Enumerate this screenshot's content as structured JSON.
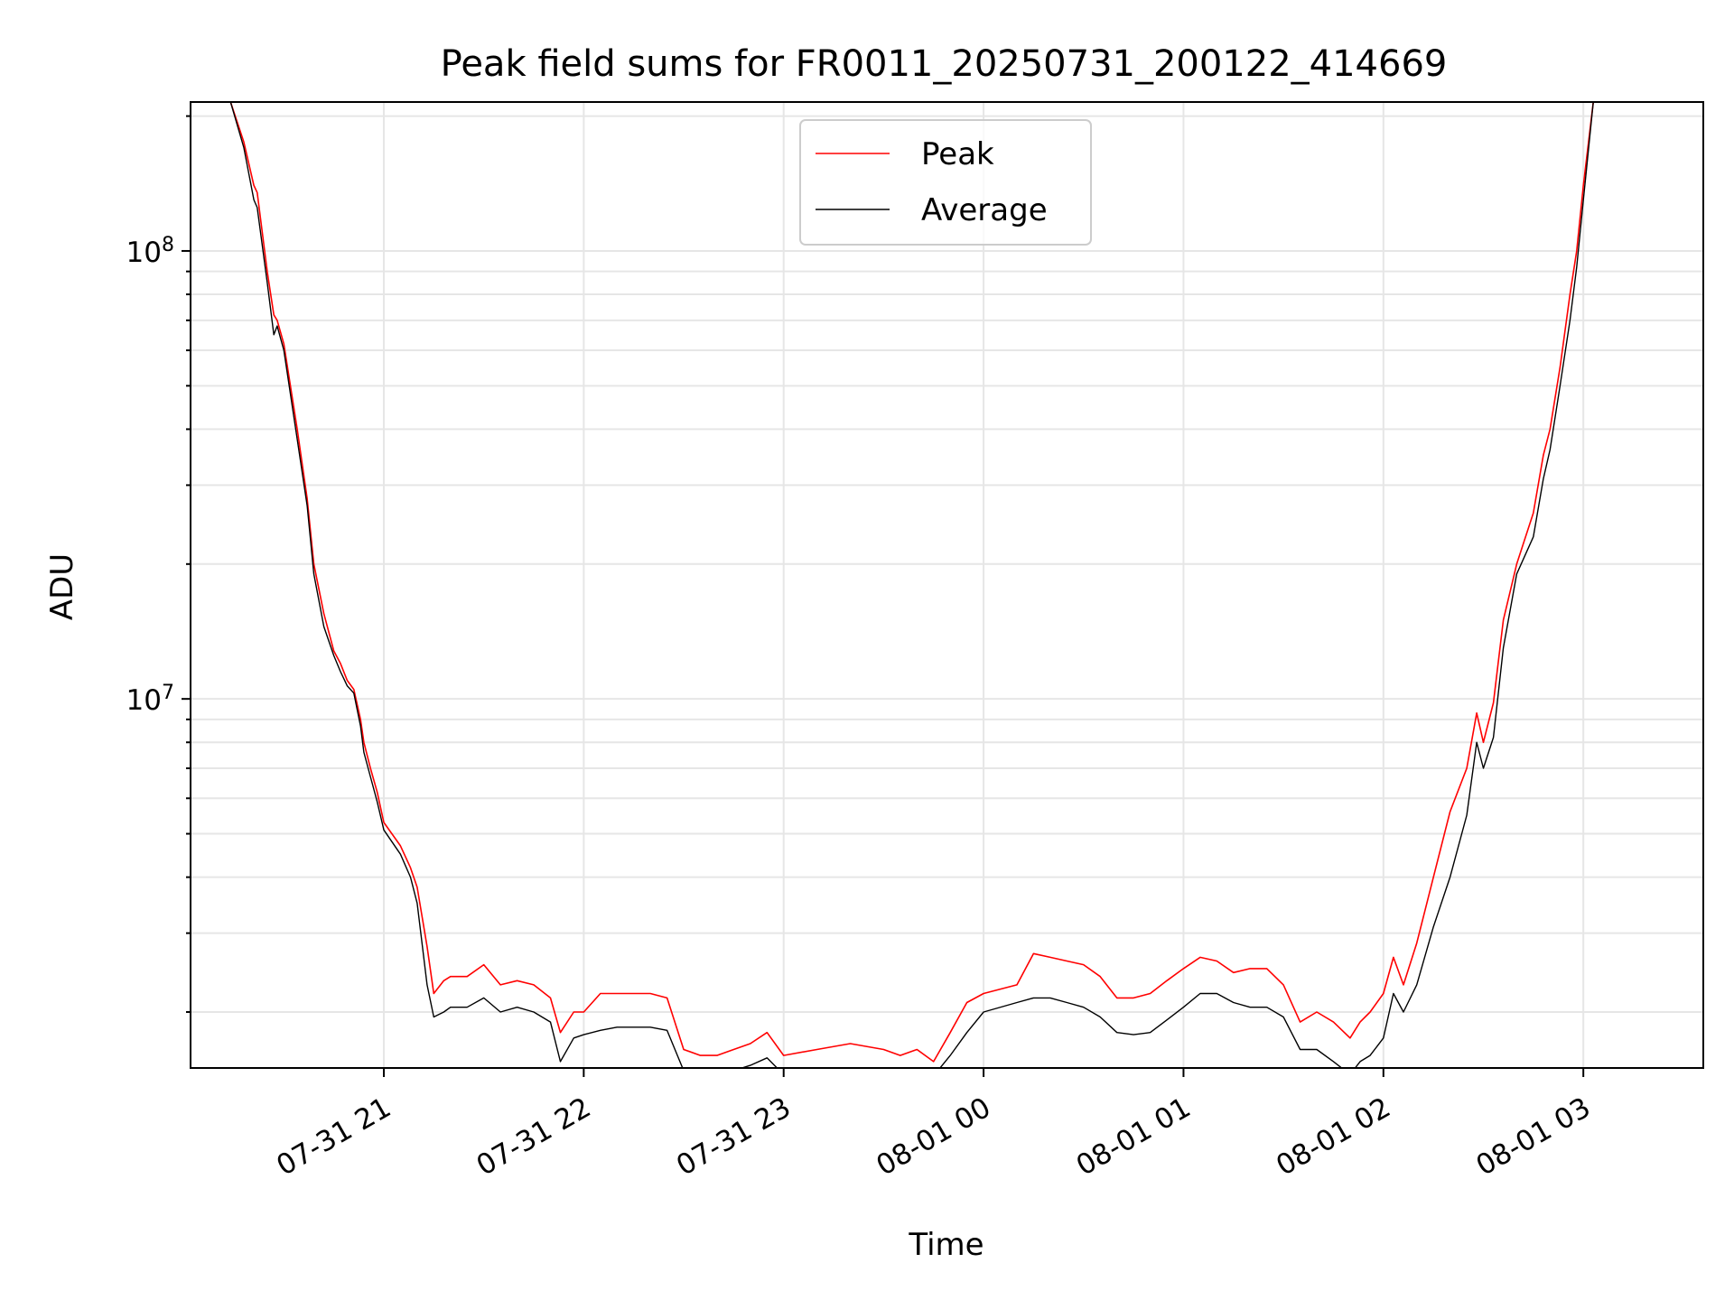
{
  "chart_data": {
    "type": "line",
    "title": "Peak field sums for FR0011_20250731_200122_414669",
    "xlabel": "Time",
    "ylabel": "ADU",
    "yscale": "log",
    "ylim": [
      1500000,
      215000000
    ],
    "xlim": [
      "2025-07-31 20:02",
      "2025-08-01 03:36"
    ],
    "grid": true,
    "legend_position": "top-center",
    "x_ticks": [
      "07-31 21",
      "07-31 22",
      "07-31 23",
      "08-01 00",
      "08-01 01",
      "08-01 02",
      "08-01 03"
    ],
    "y_ticks": [
      {
        "value": 10000000,
        "base": "10",
        "exp": "7"
      },
      {
        "value": 100000000,
        "base": "10",
        "exp": "8"
      }
    ],
    "series": [
      {
        "name": "Peak",
        "color": "#ff0000",
        "x": [
          "2025-07-31 20:14",
          "2025-07-31 20:18",
          "2025-07-31 20:21",
          "2025-07-31 20:22",
          "2025-07-31 20:25",
          "2025-07-31 20:27",
          "2025-07-31 20:28",
          "2025-07-31 20:30",
          "2025-07-31 20:34",
          "2025-07-31 20:37",
          "2025-07-31 20:39",
          "2025-07-31 20:42",
          "2025-07-31 20:45",
          "2025-07-31 20:47",
          "2025-07-31 20:49",
          "2025-07-31 20:51",
          "2025-07-31 20:53",
          "2025-07-31 20:54",
          "2025-07-31 20:56",
          "2025-07-31 20:58",
          "2025-07-31 21:00",
          "2025-07-31 21:05",
          "2025-07-31 21:08",
          "2025-07-31 21:10",
          "2025-07-31 21:13",
          "2025-07-31 21:15",
          "2025-07-31 21:18",
          "2025-07-31 21:20",
          "2025-07-31 21:25",
          "2025-07-31 21:30",
          "2025-07-31 21:35",
          "2025-07-31 21:40",
          "2025-07-31 21:45",
          "2025-07-31 21:50",
          "2025-07-31 21:53",
          "2025-07-31 21:57",
          "2025-07-31 22:00",
          "2025-07-31 22:05",
          "2025-07-31 22:10",
          "2025-07-31 22:15",
          "2025-07-31 22:20",
          "2025-07-31 22:25",
          "2025-07-31 22:30",
          "2025-07-31 22:35",
          "2025-07-31 22:40",
          "2025-07-31 22:45",
          "2025-07-31 22:50",
          "2025-07-31 22:55",
          "2025-07-31 23:00",
          "2025-07-31 23:10",
          "2025-07-31 23:20",
          "2025-07-31 23:30",
          "2025-07-31 23:35",
          "2025-07-31 23:40",
          "2025-07-31 23:45",
          "2025-07-31 23:50",
          "2025-07-31 23:55",
          "2025-08-01 00:00",
          "2025-08-01 00:10",
          "2025-08-01 00:15",
          "2025-08-01 00:20",
          "2025-08-01 00:25",
          "2025-08-01 00:30",
          "2025-08-01 00:35",
          "2025-08-01 00:40",
          "2025-08-01 00:45",
          "2025-08-01 00:50",
          "2025-08-01 00:55",
          "2025-08-01 01:00",
          "2025-08-01 01:05",
          "2025-08-01 01:10",
          "2025-08-01 01:15",
          "2025-08-01 01:20",
          "2025-08-01 01:25",
          "2025-08-01 01:30",
          "2025-08-01 01:35",
          "2025-08-01 01:40",
          "2025-08-01 01:45",
          "2025-08-01 01:50",
          "2025-08-01 01:53",
          "2025-08-01 01:56",
          "2025-08-01 02:00",
          "2025-08-01 02:03",
          "2025-08-01 02:06",
          "2025-08-01 02:10",
          "2025-08-01 02:15",
          "2025-08-01 02:20",
          "2025-08-01 02:25",
          "2025-08-01 02:28",
          "2025-08-01 02:30",
          "2025-08-01 02:33",
          "2025-08-01 02:36",
          "2025-08-01 02:40",
          "2025-08-01 02:45",
          "2025-08-01 02:48",
          "2025-08-01 02:50",
          "2025-08-01 02:53",
          "2025-08-01 02:56",
          "2025-08-01 02:58",
          "2025-08-01 03:00",
          "2025-08-01 03:03",
          "2025-08-01 03:06",
          "2025-08-01 03:08",
          "2025-08-01 03:11",
          "2025-08-01 03:13",
          "2025-08-01 03:15",
          "2025-08-01 03:18",
          "2025-08-01 03:21",
          "2025-08-01 03:24",
          "2025-08-01 03:27"
        ],
        "y": [
          215000000,
          175000000,
          140000000,
          135000000,
          90000000,
          72000000,
          70000000,
          62000000,
          40000000,
          28000000,
          20000000,
          15500000,
          12800000,
          12000000,
          11000000,
          10500000,
          9000000,
          8000000,
          7000000,
          6200000,
          5300000,
          4700000,
          4200000,
          3800000,
          2800000,
          2200000,
          2350000,
          2400000,
          2400000,
          2550000,
          2300000,
          2350000,
          2300000,
          2150000,
          1800000,
          2000000,
          2000000,
          2200000,
          2200000,
          2200000,
          2200000,
          2150000,
          1650000,
          1600000,
          1600000,
          1650000,
          1700000,
          1800000,
          1600000,
          1650000,
          1700000,
          1650000,
          1600000,
          1650000,
          1550000,
          1800000,
          2100000,
          2200000,
          2300000,
          2700000,
          2650000,
          2600000,
          2550000,
          2400000,
          2150000,
          2150000,
          2200000,
          2350000,
          2500000,
          2650000,
          2600000,
          2450000,
          2500000,
          2500000,
          2300000,
          1900000,
          2000000,
          1900000,
          1750000,
          1900000,
          2000000,
          2200000,
          2650000,
          2300000,
          2850000,
          4000000,
          5600000,
          7000000,
          9300000,
          8000000,
          9800000,
          15000000,
          20000000,
          26000000,
          35000000,
          40000000,
          55000000,
          80000000,
          100000000,
          140000000,
          215000000,
          215000000,
          215000000,
          215000000,
          215000000,
          215000000,
          215000000,
          215000000,
          215000000,
          215000000
        ]
      },
      {
        "name": "Average",
        "color": "#000000",
        "x": [
          "2025-07-31 20:14",
          "2025-07-31 20:18",
          "2025-07-31 20:21",
          "2025-07-31 20:22",
          "2025-07-31 20:25",
          "2025-07-31 20:27",
          "2025-07-31 20:28",
          "2025-07-31 20:30",
          "2025-07-31 20:34",
          "2025-07-31 20:37",
          "2025-07-31 20:39",
          "2025-07-31 20:42",
          "2025-07-31 20:45",
          "2025-07-31 20:47",
          "2025-07-31 20:49",
          "2025-07-31 20:51",
          "2025-07-31 20:53",
          "2025-07-31 20:54",
          "2025-07-31 20:56",
          "2025-07-31 20:58",
          "2025-07-31 21:00",
          "2025-07-31 21:05",
          "2025-07-31 21:08",
          "2025-07-31 21:10",
          "2025-07-31 21:13",
          "2025-07-31 21:15",
          "2025-07-31 21:18",
          "2025-07-31 21:20",
          "2025-07-31 21:25",
          "2025-07-31 21:30",
          "2025-07-31 21:35",
          "2025-07-31 21:40",
          "2025-07-31 21:45",
          "2025-07-31 21:50",
          "2025-07-31 21:53",
          "2025-07-31 21:57",
          "2025-07-31 22:00",
          "2025-07-31 22:05",
          "2025-07-31 22:10",
          "2025-07-31 22:15",
          "2025-07-31 22:20",
          "2025-07-31 22:25",
          "2025-07-31 22:30",
          "2025-07-31 22:35",
          "2025-07-31 22:40",
          "2025-07-31 22:45",
          "2025-07-31 22:50",
          "2025-07-31 22:55",
          "2025-07-31 23:00",
          "2025-07-31 23:10",
          "2025-07-31 23:20",
          "2025-07-31 23:30",
          "2025-07-31 23:35",
          "2025-07-31 23:40",
          "2025-07-31 23:45",
          "2025-07-31 23:50",
          "2025-07-31 23:55",
          "2025-08-01 00:00",
          "2025-08-01 00:10",
          "2025-08-01 00:15",
          "2025-08-01 00:20",
          "2025-08-01 00:25",
          "2025-08-01 00:30",
          "2025-08-01 00:35",
          "2025-08-01 00:40",
          "2025-08-01 00:45",
          "2025-08-01 00:50",
          "2025-08-01 00:55",
          "2025-08-01 01:00",
          "2025-08-01 01:05",
          "2025-08-01 01:10",
          "2025-08-01 01:15",
          "2025-08-01 01:20",
          "2025-08-01 01:25",
          "2025-08-01 01:30",
          "2025-08-01 01:35",
          "2025-08-01 01:40",
          "2025-08-01 01:45",
          "2025-08-01 01:50",
          "2025-08-01 01:53",
          "2025-08-01 01:56",
          "2025-08-01 02:00",
          "2025-08-01 02:03",
          "2025-08-01 02:06",
          "2025-08-01 02:10",
          "2025-08-01 02:15",
          "2025-08-01 02:20",
          "2025-08-01 02:25",
          "2025-08-01 02:28",
          "2025-08-01 02:30",
          "2025-08-01 02:33",
          "2025-08-01 02:36",
          "2025-08-01 02:40",
          "2025-08-01 02:45",
          "2025-08-01 02:48",
          "2025-08-01 02:50",
          "2025-08-01 02:53",
          "2025-08-01 02:56",
          "2025-08-01 02:58",
          "2025-08-01 03:00",
          "2025-08-01 03:03",
          "2025-08-01 03:06",
          "2025-08-01 03:08",
          "2025-08-01 03:11",
          "2025-08-01 03:13",
          "2025-08-01 03:15",
          "2025-08-01 03:18",
          "2025-08-01 03:21",
          "2025-08-01 03:24",
          "2025-08-01 03:27"
        ],
        "y": [
          215000000,
          170000000,
          130000000,
          125000000,
          85000000,
          65000000,
          68000000,
          60000000,
          38000000,
          27000000,
          19000000,
          14500000,
          12500000,
          11500000,
          10700000,
          10300000,
          8700000,
          7600000,
          6700000,
          5900000,
          5100000,
          4500000,
          4000000,
          3500000,
          2300000,
          1950000,
          2000000,
          2050000,
          2050000,
          2150000,
          2000000,
          2050000,
          2000000,
          1900000,
          1550000,
          1750000,
          1780000,
          1820000,
          1850000,
          1850000,
          1850000,
          1820000,
          1480000,
          1420000,
          1440000,
          1480000,
          1520000,
          1580000,
          1450000,
          1480000,
          1500000,
          1480000,
          1440000,
          1470000,
          1440000,
          1600000,
          1800000,
          2000000,
          2100000,
          2150000,
          2150000,
          2100000,
          2050000,
          1950000,
          1800000,
          1780000,
          1800000,
          1920000,
          2050000,
          2200000,
          2200000,
          2100000,
          2050000,
          2050000,
          1950000,
          1650000,
          1650000,
          1550000,
          1450000,
          1550000,
          1600000,
          1750000,
          2200000,
          2000000,
          2300000,
          3100000,
          4000000,
          5500000,
          8000000,
          7000000,
          8200000,
          13000000,
          19000000,
          23000000,
          31000000,
          36000000,
          50000000,
          70000000,
          92000000,
          130000000,
          215000000,
          215000000,
          215000000,
          215000000,
          215000000,
          215000000,
          215000000,
          215000000,
          215000000,
          215000000
        ]
      }
    ]
  }
}
